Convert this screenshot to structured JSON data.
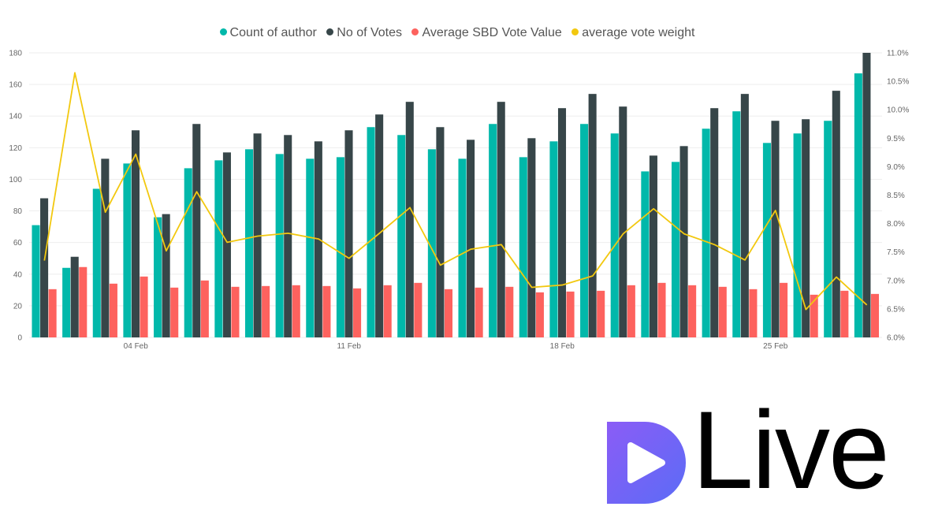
{
  "logo": {
    "text": "Live"
  },
  "colors": {
    "count_of_author": "#01B8AA",
    "no_of_votes": "#374649",
    "average_sbd_vote_value": "#FD625E",
    "average_vote_weight": "#F2C80F",
    "logo_gradient_start": "#8B5CF6",
    "logo_gradient_end": "#5B6CF6"
  },
  "chart_data": {
    "type": "bar",
    "title": "",
    "legend_position": "top-center",
    "grid": true,
    "x_ticks": [
      {
        "index": 3,
        "label": "04 Feb"
      },
      {
        "index": 10,
        "label": "11 Feb"
      },
      {
        "index": 17,
        "label": "18 Feb"
      },
      {
        "index": 24,
        "label": "25 Feb"
      }
    ],
    "y_left": {
      "min": 0,
      "max": 180,
      "ticks": [
        0,
        20,
        40,
        60,
        80,
        100,
        120,
        140,
        160,
        180
      ]
    },
    "y_right": {
      "min": 6.0,
      "max": 11.0,
      "ticks": [
        "6.0%",
        "6.5%",
        "7.0%",
        "7.5%",
        "8.0%",
        "8.5%",
        "9.0%",
        "9.5%",
        "10.0%",
        "10.5%",
        "11.0%"
      ]
    },
    "series": [
      {
        "name": "Count of author",
        "type": "bar",
        "axis": "left",
        "values": [
          71,
          44,
          94,
          110,
          76,
          107,
          112,
          119,
          116,
          113,
          114,
          133,
          128,
          119,
          113,
          135,
          114,
          124,
          135,
          129,
          105,
          111,
          132,
          143,
          123,
          129,
          137,
          167
        ]
      },
      {
        "name": "No of Votes",
        "type": "bar",
        "axis": "left",
        "values": [
          88,
          51,
          113,
          131,
          78,
          135,
          117,
          129,
          128,
          124,
          131,
          141,
          149,
          133,
          125,
          149,
          126,
          145,
          154,
          146,
          115,
          121,
          145,
          154,
          137,
          138,
          156,
          180
        ]
      },
      {
        "name": "Average SBD Vote Value",
        "type": "bar",
        "axis": "left",
        "values": [
          30.5,
          44.5,
          34,
          38.5,
          31.5,
          36,
          32,
          32.5,
          33,
          32.5,
          31,
          33,
          34.5,
          30.5,
          31.5,
          32,
          28.5,
          29,
          29.5,
          33,
          34.5,
          33,
          32,
          30.5,
          34.5,
          27,
          29.5,
          27.5
        ]
      },
      {
        "name": "average vote weight",
        "type": "line",
        "axis": "right",
        "unit": "%",
        "values": [
          7.35,
          10.65,
          8.2,
          9.22,
          7.52,
          8.56,
          7.67,
          7.78,
          7.83,
          7.73,
          7.39,
          7.83,
          8.28,
          7.27,
          7.55,
          7.63,
          6.88,
          6.92,
          7.08,
          7.82,
          8.26,
          7.82,
          7.63,
          7.36,
          8.23,
          6.49,
          7.06,
          6.57
        ]
      }
    ]
  }
}
